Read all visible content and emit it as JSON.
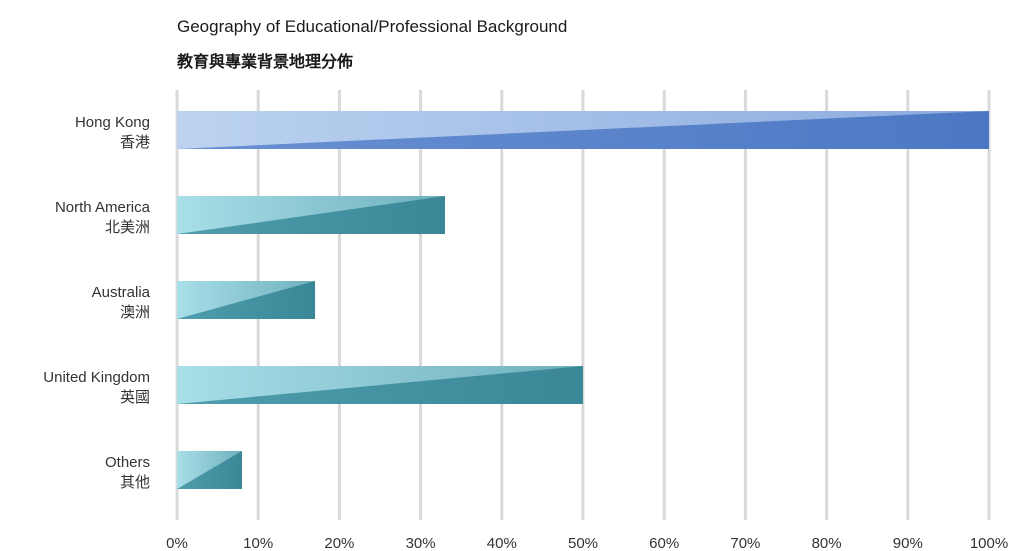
{
  "chart_data": {
    "type": "bar",
    "orientation": "horizontal",
    "title": "Geography of Educational/Professional Background",
    "subtitle": "教育與專業背景地理分佈",
    "categories": [
      {
        "en": "Hong Kong",
        "zh": "香港"
      },
      {
        "en": "North America",
        "zh": "北美洲"
      },
      {
        "en": "Australia",
        "zh": "澳洲"
      },
      {
        "en": "United Kingdom",
        "zh": "英國"
      },
      {
        "en": "Others",
        "zh": "其他"
      }
    ],
    "values": [
      100,
      33,
      17,
      50,
      8
    ],
    "xlim": [
      0,
      100
    ],
    "x_ticks": [
      "0%",
      "10%",
      "20%",
      "30%",
      "40%",
      "50%",
      "60%",
      "70%",
      "80%",
      "90%",
      "100%"
    ],
    "grid": true,
    "colors": {
      "primary_light": "#b4cdee",
      "primary_dark": "#4f7bc5",
      "teal_light": "#a3dce6",
      "teal_dark": "#3a8898",
      "grid": "#d9d9d9"
    }
  }
}
